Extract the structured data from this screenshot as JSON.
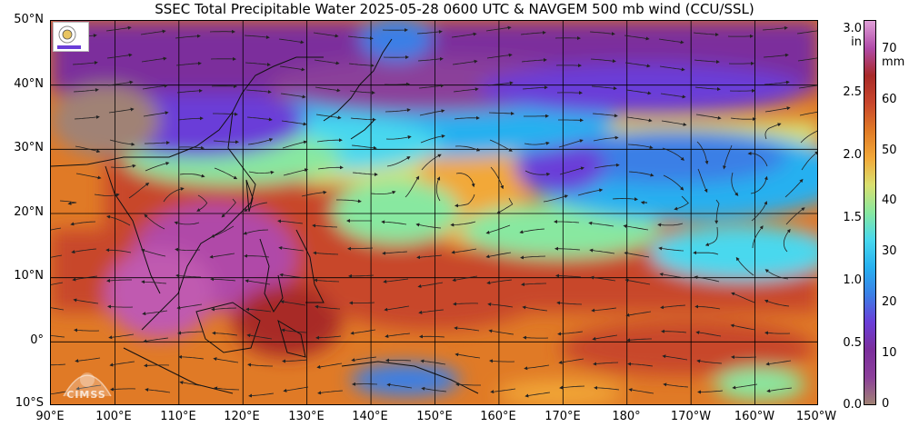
{
  "title": "SSEC Total Precipitable Water  2025-05-28 0600 UTC & NAVGEM 500 mb wind (CCU/SSL)",
  "lat_labels": [
    "50°N",
    "40°N",
    "30°N",
    "20°N",
    "10°N",
    "0°",
    "10°S"
  ],
  "lon_labels": [
    "90°E",
    "100°E",
    "110°E",
    "120°E",
    "130°E",
    "140°E",
    "150°E",
    "160°E",
    "170°E",
    "180°",
    "170°W",
    "160°W",
    "150°W"
  ],
  "colorbar": {
    "unit_in": "in",
    "unit_mm": "mm",
    "in_ticks": [
      "3.0",
      "2.5",
      "2.0",
      "1.5",
      "1.0",
      "0.5",
      "0.0"
    ],
    "in_values": [
      3.0,
      2.5,
      2.0,
      1.5,
      1.0,
      0.5,
      0.0
    ],
    "mm_ticks": [
      "70",
      "60",
      "50",
      "40",
      "30",
      "20",
      "10",
      "0"
    ],
    "mm_values": [
      70,
      60,
      50,
      40,
      30,
      20,
      10,
      0
    ],
    "range_mm": [
      0,
      76
    ],
    "colors": [
      "#a08274",
      "#8b3f9a",
      "#7b2e9c",
      "#6a3ed8",
      "#3b7fe6",
      "#27b0f0",
      "#48d8ee",
      "#88e8a0",
      "#d9e070",
      "#f2a838",
      "#e07a26",
      "#c8462c",
      "#a82a28",
      "#b04aa8",
      "#e0a0d8"
    ]
  },
  "logo": "SSEC-logo",
  "watermark": "CIMSS"
}
